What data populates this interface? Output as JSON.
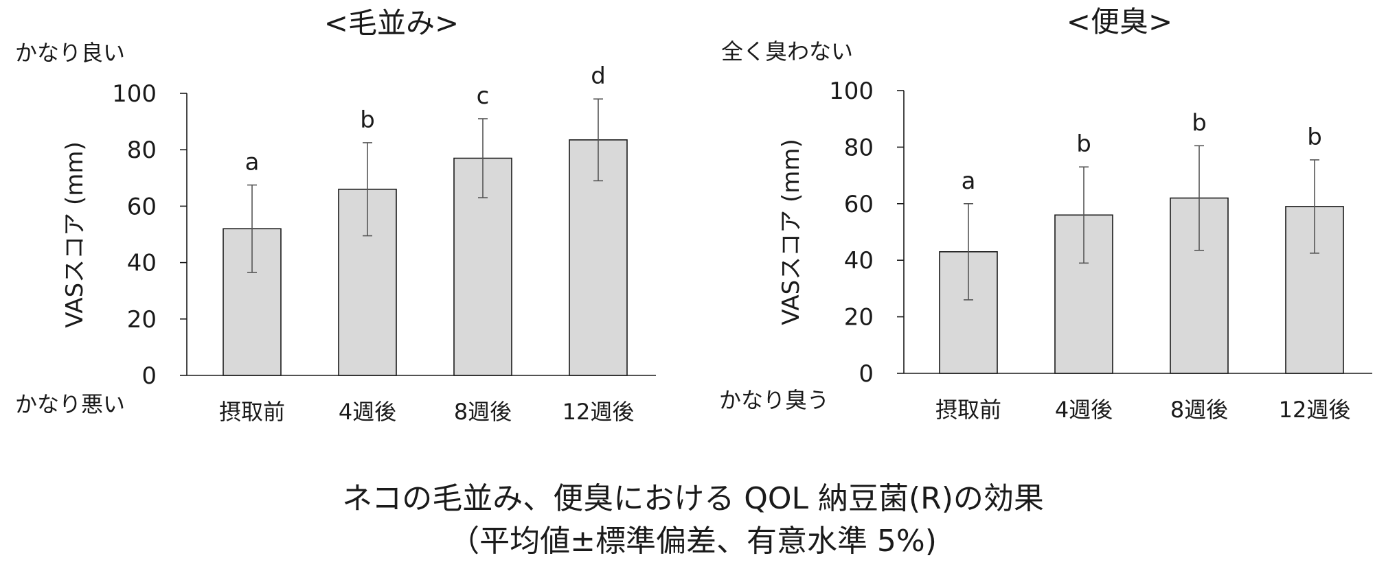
{
  "chart_data": [
    {
      "type": "bar",
      "title": "<毛並み>",
      "ylabel": "VASスコア (mm)",
      "xlabel": "",
      "ylim": [
        0,
        100
      ],
      "yticks": [
        0,
        20,
        40,
        60,
        80,
        100
      ],
      "y_top_label": "かなり良い",
      "y_bottom_label": "かなり悪い",
      "categories": [
        "摂取前",
        "4週後",
        "8週後",
        "12週後"
      ],
      "values": [
        52,
        66,
        77,
        83.5
      ],
      "error": [
        15.5,
        16.5,
        14,
        14.5
      ],
      "significance_letters": [
        "a",
        "b",
        "c",
        "d"
      ],
      "bar_color": "#d9d9d9",
      "grid": false,
      "legend": "none"
    },
    {
      "type": "bar",
      "title": "<便臭>",
      "ylabel": "VASスコア (mm)",
      "xlabel": "",
      "ylim": [
        0,
        100
      ],
      "yticks": [
        0,
        20,
        40,
        60,
        80,
        100
      ],
      "y_top_label": "全く臭わない",
      "y_bottom_label": "かなり臭う",
      "categories": [
        "摂取前",
        "4週後",
        "8週後",
        "12週後"
      ],
      "values": [
        43,
        56,
        62,
        59
      ],
      "error": [
        17,
        17,
        18.5,
        16.5
      ],
      "significance_letters": [
        "a",
        "b",
        "b",
        "b"
      ],
      "bar_color": "#d9d9d9",
      "grid": false,
      "legend": "none"
    }
  ],
  "caption": {
    "line1": "ネコの毛並み、便臭における QOL 納豆菌(R)の効果",
    "line2": "（平均値±標準偏差、有意水準 5%)"
  }
}
